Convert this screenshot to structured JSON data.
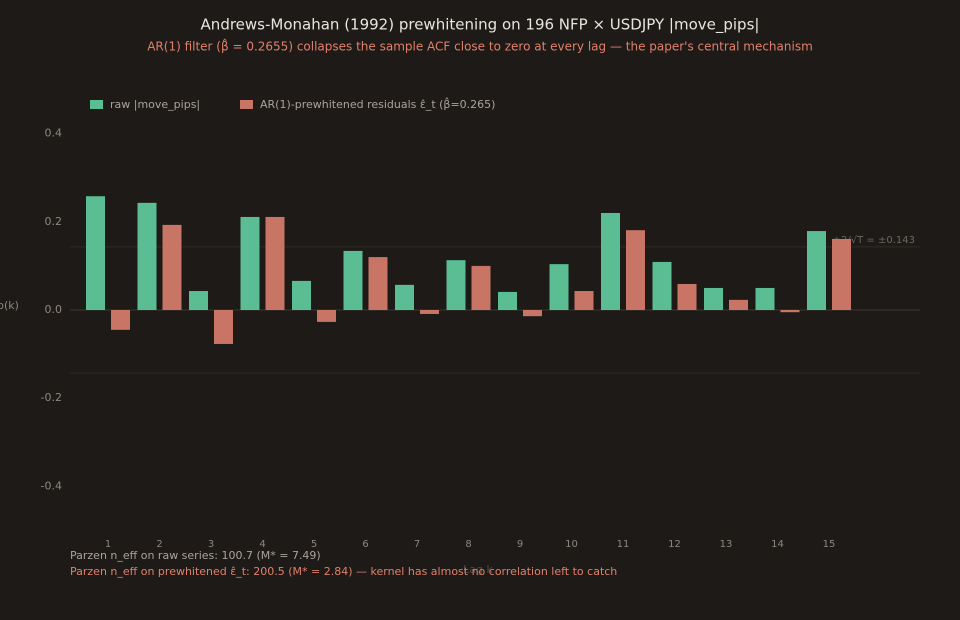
{
  "chart_data": {
    "type": "bar",
    "title": "Andrews-Monahan (1992) prewhitening on 196 NFP × USDJPY |move_pips|",
    "subtitle": "AR(1) filter (β̂ = 0.2655) collapses the sample ACF close to zero at every lag — the paper's central mechanism",
    "x_label": "Lag k",
    "y_label": "ρ(k)",
    "categories": [
      "1",
      "2",
      "3",
      "4",
      "5",
      "6",
      "7",
      "8",
      "9",
      "10",
      "11",
      "12",
      "13",
      "14",
      "15"
    ],
    "series": [
      {
        "name": "raw |move_pips|",
        "color": "#5bbd94",
        "values": [
          0.258,
          0.243,
          0.043,
          0.211,
          0.066,
          0.134,
          0.057,
          0.113,
          0.041,
          0.104,
          0.22,
          0.109,
          0.05,
          0.05,
          0.179
        ]
      },
      {
        "name": "AR(1)-prewhitened residuals ε̂_t (β̂=0.265)",
        "color": "#c87565",
        "values": [
          -0.045,
          0.193,
          -0.077,
          0.211,
          -0.027,
          0.12,
          -0.009,
          0.1,
          -0.014,
          0.043,
          0.181,
          0.059,
          0.023,
          -0.005,
          0.161
        ]
      }
    ],
    "ylim": [
      -0.5,
      0.5
    ],
    "yticks": [
      -0.4,
      -0.2,
      {
        "value": 0,
        "label": "0.0"
      },
      0.2,
      0.4
    ],
    "bands": {
      "values": [
        0.143,
        -0.143
      ],
      "label": "±2/√T = ±0.143"
    },
    "annotations": [
      "Parzen n_eff on raw series: 100.7 (M* = 7.49)",
      "Parzen n_eff on prewhitened ε̂_t: 200.5 (M* = 2.84) — kernel has almost no correlation left to catch"
    ],
    "legend": "top-left"
  }
}
